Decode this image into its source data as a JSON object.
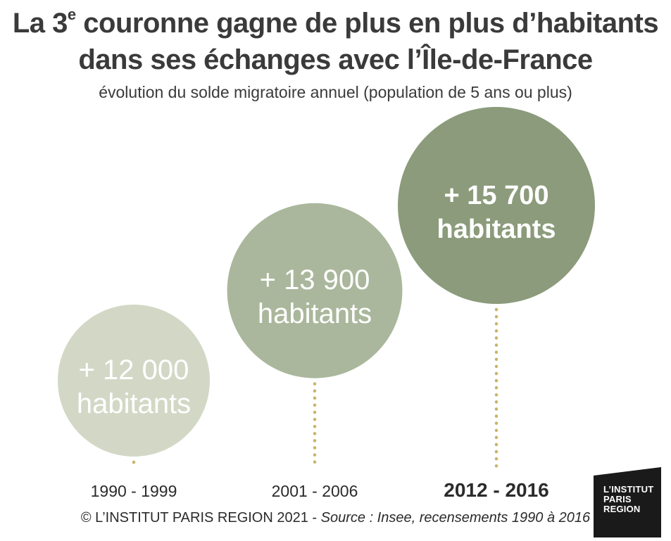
{
  "title": {
    "line1_prefix": "La 3",
    "line1_sup": "e",
    "line1_rest": " couronne gagne de plus en plus d’habitants",
    "line2": "dans ses échanges avec l’Île-de-France"
  },
  "subtitle": "évolution du solde migratoire annuel (population de 5 ans ou plus)",
  "chart_data": {
    "type": "bubble",
    "title": "La 3e couronne gagne de plus en plus d’habitants dans ses échanges avec l’Île-de-France",
    "subtitle": "évolution du solde migratoire annuel (population de 5 ans ou plus)",
    "categories": [
      "1990 - 1999",
      "2001 - 2006",
      "2012 - 2016"
    ],
    "values": [
      12000,
      13900,
      15700
    ],
    "value_labels": [
      "+ 12 000",
      "+ 13 900",
      "+ 15 700"
    ],
    "unit_label": "habitants",
    "highlighted_category": "2012 - 2016",
    "colors": [
      "#d3d8c6",
      "#aab79c",
      "#8b9b7b"
    ],
    "stem_color": "#c8b46a"
  },
  "footer": {
    "copyright": "© L’INSTITUT PARIS REGION 2021 - ",
    "source": "Source : Insee, recensements 1990 à 2016"
  },
  "logo": {
    "line1": "L’INSTITUT",
    "line2": "PARIS",
    "line3": "REGION",
    "color": "#1a1a1a"
  }
}
